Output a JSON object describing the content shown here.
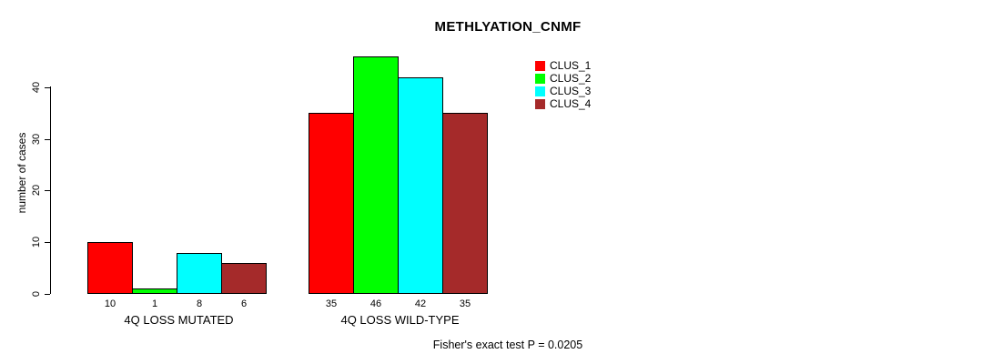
{
  "title": "METHLYATION_CNMF",
  "footer": "Fisher's exact test P = 0.0205",
  "y_axis": {
    "label": "number of cases",
    "ticks": [
      0,
      10,
      20,
      30,
      40
    ]
  },
  "legend": {
    "items": [
      {
        "label": "CLUS_1",
        "color": "#FF0000"
      },
      {
        "label": "CLUS_2",
        "color": "#00FF00"
      },
      {
        "label": "CLUS_3",
        "color": "#00FFFF"
      },
      {
        "label": "CLUS_4",
        "color": "#A52A2A"
      }
    ]
  },
  "chart_data": {
    "type": "bar",
    "title": "METHLYATION_CNMF",
    "xlabel": "",
    "ylabel": "number of cases",
    "ylim": [
      0,
      46
    ],
    "yticks": [
      0,
      10,
      20,
      30,
      40
    ],
    "grid": false,
    "legend_position": "top-right",
    "categories": [
      "4Q LOSS MUTATED",
      "4Q LOSS WILD-TYPE"
    ],
    "series": [
      {
        "name": "CLUS_1",
        "color": "#FF0000",
        "values": [
          10,
          35
        ]
      },
      {
        "name": "CLUS_2",
        "color": "#00FF00",
        "values": [
          1,
          46
        ]
      },
      {
        "name": "CLUS_3",
        "color": "#00FFFF",
        "values": [
          8,
          42
        ]
      },
      {
        "name": "CLUS_4",
        "color": "#A52A2A",
        "values": [
          6,
          35
        ]
      }
    ],
    "bar_value_labels": [
      [
        10,
        1,
        8,
        6
      ],
      [
        35,
        46,
        42,
        35
      ]
    ],
    "annotation": "Fisher's exact test P = 0.0205"
  }
}
